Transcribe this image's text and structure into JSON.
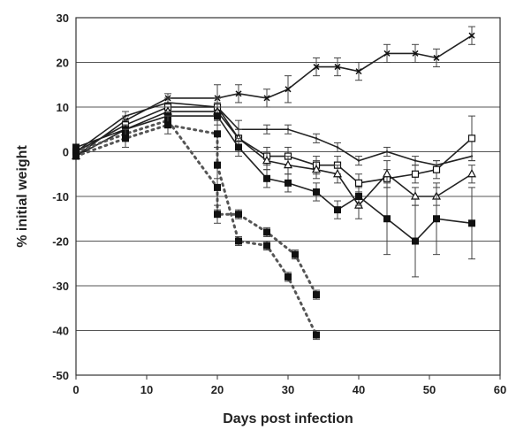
{
  "chart_data": {
    "type": "line",
    "xlabel": "Days post infection",
    "ylabel": "% initial weight",
    "xlim": [
      0,
      60
    ],
    "ylim": [
      -50,
      30
    ],
    "xticks": [
      0,
      10,
      20,
      30,
      40,
      50,
      60
    ],
    "yticks": [
      30,
      20,
      10,
      0,
      -10,
      -20,
      -30,
      -40,
      -50
    ],
    "grid": "horizontal",
    "series": [
      {
        "style": "solid",
        "marker": "x",
        "points": [
          [
            0,
            -1
          ],
          [
            7,
            7
          ],
          [
            13,
            12
          ],
          [
            20,
            12
          ],
          [
            23,
            13
          ],
          [
            27,
            12
          ],
          [
            30,
            14
          ],
          [
            34,
            19
          ],
          [
            37,
            19
          ],
          [
            40,
            18
          ],
          [
            44,
            22
          ],
          [
            48,
            22
          ],
          [
            51,
            21
          ],
          [
            56,
            26
          ]
        ],
        "err": [
          0,
          1,
          1,
          3,
          2,
          2,
          3,
          2,
          2,
          2,
          2,
          2,
          2,
          2
        ]
      },
      {
        "style": "solid",
        "marker": "none",
        "points": [
          [
            0,
            0
          ],
          [
            7,
            8
          ],
          [
            13,
            11
          ],
          [
            20,
            10
          ],
          [
            23,
            5
          ],
          [
            27,
            5
          ],
          [
            30,
            5
          ],
          [
            34,
            3
          ],
          [
            37,
            1
          ],
          [
            40,
            -2
          ],
          [
            44,
            0
          ],
          [
            48,
            -2
          ],
          [
            51,
            -3
          ],
          [
            56,
            -1
          ]
        ],
        "err": [
          0,
          1,
          1,
          2,
          2,
          1,
          1,
          1,
          1,
          1,
          1,
          1,
          1,
          1
        ]
      },
      {
        "style": "solid",
        "marker": "open-square",
        "points": [
          [
            0,
            0
          ],
          [
            7,
            6
          ],
          [
            13,
            10
          ],
          [
            20,
            10
          ],
          [
            23,
            3
          ],
          [
            27,
            -1
          ],
          [
            30,
            -1
          ],
          [
            34,
            -3
          ],
          [
            37,
            -3
          ],
          [
            40,
            -7
          ],
          [
            44,
            -6
          ],
          [
            48,
            -5
          ],
          [
            51,
            -4
          ],
          [
            56,
            3
          ]
        ],
        "err": [
          0,
          1,
          1,
          2,
          2,
          2,
          2,
          2,
          2,
          2,
          2,
          2,
          2,
          5
        ]
      },
      {
        "style": "solid",
        "marker": "open-triangle",
        "points": [
          [
            0,
            -1
          ],
          [
            7,
            5
          ],
          [
            13,
            9
          ],
          [
            20,
            9
          ],
          [
            23,
            3
          ],
          [
            27,
            -2
          ],
          [
            30,
            -3
          ],
          [
            34,
            -4
          ],
          [
            37,
            -5
          ],
          [
            40,
            -12
          ],
          [
            44,
            -5
          ],
          [
            48,
            -10
          ],
          [
            51,
            -10
          ],
          [
            56,
            -5
          ]
        ],
        "err": [
          0,
          1,
          1,
          2,
          2,
          2,
          2,
          2,
          2,
          3,
          3,
          2,
          2,
          2
        ]
      },
      {
        "style": "solid",
        "marker": "filled-square",
        "points": [
          [
            0,
            1
          ],
          [
            7,
            5
          ],
          [
            13,
            8
          ],
          [
            20,
            8
          ],
          [
            23,
            1
          ],
          [
            27,
            -6
          ],
          [
            30,
            -7
          ],
          [
            34,
            -9
          ],
          [
            37,
            -13
          ],
          [
            40,
            -10
          ],
          [
            44,
            -15
          ],
          [
            48,
            -20
          ],
          [
            51,
            -15
          ],
          [
            56,
            -16
          ]
        ],
        "err": [
          0,
          1,
          1,
          2,
          2,
          2,
          2,
          2,
          2,
          2,
          8,
          8,
          8,
          8
        ]
      },
      {
        "style": "dotted",
        "marker": "filled-square",
        "points": [
          [
            0,
            0
          ],
          [
            7,
            4
          ],
          [
            13,
            7
          ],
          [
            20,
            -8
          ],
          [
            20,
            -14
          ],
          [
            23,
            -14
          ],
          [
            27,
            -18
          ],
          [
            31,
            -23
          ],
          [
            34,
            -32
          ]
        ],
        "err": [
          0,
          1,
          1,
          5,
          2,
          1,
          1,
          1,
          1
        ]
      },
      {
        "style": "dotted",
        "marker": "filled-square",
        "points": [
          [
            0,
            -1
          ],
          [
            7,
            3
          ],
          [
            13,
            6
          ],
          [
            20,
            4
          ],
          [
            20,
            -3
          ],
          [
            23,
            -20
          ],
          [
            27,
            -21
          ],
          [
            30,
            -28
          ],
          [
            34,
            -41
          ]
        ],
        "err": [
          0,
          2,
          2,
          3,
          3,
          1,
          1,
          1,
          1
        ]
      }
    ]
  }
}
